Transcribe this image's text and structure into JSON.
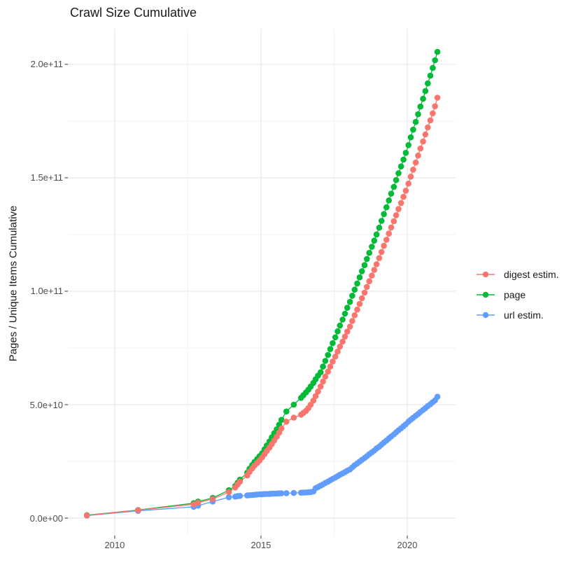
{
  "title": "Crawl Size Cumulative",
  "x_axis": {
    "tick_labels": [
      "2010",
      "2015",
      "2020"
    ],
    "tick_years": [
      2010,
      2015,
      2020
    ],
    "minor_years": [
      2012.5,
      2017.5
    ]
  },
  "y_axis": {
    "label": "Pages / Unique Items Cumulative",
    "tick_labels": [
      "0.0e+00",
      "5.0e+10",
      "1.0e+11",
      "1.5e+11",
      "2.0e+11"
    ],
    "tick_values_billions": [
      0,
      50,
      100,
      150,
      200
    ],
    "minor_values_billions": [
      25,
      75,
      125,
      175
    ]
  },
  "legend": {
    "items": [
      {
        "series": "digest",
        "label": "digest estim.",
        "color": "#F8766D"
      },
      {
        "series": "page",
        "label": "page",
        "color": "#00BA38"
      },
      {
        "series": "url",
        "label": "url estim.",
        "color": "#619CFF"
      }
    ]
  },
  "chart_data": {
    "type": "line",
    "title": "Crawl Size Cumulative",
    "xlabel": "",
    "ylabel": "Pages / Unique Items Cumulative",
    "x_unit": "year (decimal)",
    "y_unit": "cumulative items, billions (value x 1e9)",
    "xlim": [
      2008.4,
      2021.65
    ],
    "ylim_billions": [
      -7.7,
      215.7
    ],
    "grid": "major+minor",
    "legend_position": "right",
    "marker": "point",
    "series_colors": {
      "digest estim.": "#F8766D",
      "page": "#00BA38",
      "url estim.": "#619CFF"
    },
    "draw_order": [
      "page",
      "url",
      "digest"
    ],
    "crawl_columns": [
      "year",
      "page_billions",
      "digest_estim_billions",
      "url_estim_billions"
    ],
    "crawls": [
      [
        2009.05,
        1.3,
        1.2,
        1.1
      ],
      [
        2010.8,
        3.6,
        3.5,
        3.2
      ],
      [
        2012.7,
        6.6,
        6.1,
        5.0
      ],
      [
        2012.85,
        7.3,
        6.8,
        5.5
      ],
      [
        2013.35,
        8.9,
        8.4,
        7.3
      ],
      [
        2013.9,
        12.3,
        11.5,
        9.2
      ],
      [
        2014.12,
        14.2,
        13.5,
        9.5
      ],
      [
        2014.2,
        15.6,
        14.8,
        9.7
      ],
      [
        2014.28,
        17.0,
        16.1,
        9.8
      ],
      [
        2014.53,
        20.0,
        18.8,
        10.0
      ],
      [
        2014.61,
        21.8,
        20.4,
        10.1
      ],
      [
        2014.7,
        23.4,
        21.9,
        10.2
      ],
      [
        2014.78,
        24.8,
        23.2,
        10.3
      ],
      [
        2014.87,
        26.0,
        24.3,
        10.4
      ],
      [
        2014.95,
        27.3,
        25.4,
        10.5
      ],
      [
        2015.04,
        28.6,
        26.8,
        10.55
      ],
      [
        2015.12,
        30.3,
        28.2,
        10.6
      ],
      [
        2015.2,
        32.0,
        29.6,
        10.65
      ],
      [
        2015.29,
        33.8,
        31.1,
        10.7
      ],
      [
        2015.37,
        35.6,
        32.6,
        10.75
      ],
      [
        2015.45,
        37.4,
        34.2,
        10.8
      ],
      [
        2015.54,
        39.2,
        35.9,
        10.85
      ],
      [
        2015.62,
        41.2,
        37.7,
        10.9
      ],
      [
        2015.7,
        43.3,
        39.5,
        10.95
      ],
      [
        2015.87,
        47.0,
        42.5,
        11.0
      ],
      [
        2016.12,
        50.0,
        44.3,
        11.1
      ],
      [
        2016.37,
        53.0,
        45.6,
        11.2
      ],
      [
        2016.45,
        54.2,
        46.4,
        11.25
      ],
      [
        2016.54,
        55.4,
        47.3,
        11.3
      ],
      [
        2016.62,
        56.6,
        48.5,
        11.4
      ],
      [
        2016.7,
        58.0,
        50.0,
        11.5
      ],
      [
        2016.79,
        59.6,
        51.8,
        11.7
      ],
      [
        2016.87,
        61.2,
        53.8,
        13.2
      ],
      [
        2016.95,
        62.8,
        55.8,
        13.7
      ],
      [
        2017.04,
        64.3,
        58.0,
        14.3
      ],
      [
        2017.12,
        66.8,
        60.2,
        14.9
      ],
      [
        2017.2,
        69.3,
        62.4,
        15.5
      ],
      [
        2017.29,
        71.9,
        64.6,
        16.1
      ],
      [
        2017.37,
        74.5,
        66.8,
        16.7
      ],
      [
        2017.45,
        77.1,
        69.0,
        17.3
      ],
      [
        2017.54,
        79.7,
        71.2,
        17.9
      ],
      [
        2017.62,
        82.3,
        73.4,
        18.5
      ],
      [
        2017.7,
        84.9,
        75.6,
        19.1
      ],
      [
        2017.79,
        87.5,
        77.8,
        19.7
      ],
      [
        2017.87,
        90.1,
        80.0,
        20.3
      ],
      [
        2017.95,
        92.7,
        82.2,
        20.9
      ],
      [
        2018.04,
        95.3,
        84.4,
        21.5
      ],
      [
        2018.12,
        98.0,
        86.9,
        22.4
      ],
      [
        2018.2,
        100.7,
        89.4,
        23.3
      ],
      [
        2018.29,
        103.4,
        91.9,
        24.1
      ],
      [
        2018.37,
        106.1,
        94.4,
        24.9
      ],
      [
        2018.45,
        108.8,
        96.9,
        25.7
      ],
      [
        2018.54,
        111.5,
        99.4,
        26.5
      ],
      [
        2018.62,
        114.2,
        101.9,
        27.3
      ],
      [
        2018.7,
        116.9,
        104.4,
        28.2
      ],
      [
        2018.79,
        119.6,
        106.9,
        29.0
      ],
      [
        2018.87,
        122.3,
        109.4,
        29.8
      ],
      [
        2018.95,
        125.0,
        111.9,
        30.7
      ],
      [
        2019.04,
        128.0,
        114.6,
        31.5
      ],
      [
        2019.12,
        131.0,
        117.3,
        32.4
      ],
      [
        2019.2,
        134.0,
        120.0,
        33.3
      ],
      [
        2019.29,
        137.0,
        122.7,
        34.2
      ],
      [
        2019.37,
        140.0,
        125.4,
        35.1
      ],
      [
        2019.45,
        143.0,
        128.1,
        36.0
      ],
      [
        2019.54,
        146.0,
        130.8,
        36.9
      ],
      [
        2019.62,
        149.0,
        133.5,
        37.8
      ],
      [
        2019.7,
        152.0,
        136.2,
        38.7
      ],
      [
        2019.79,
        155.0,
        138.9,
        39.6
      ],
      [
        2019.87,
        158.0,
        141.6,
        40.5
      ],
      [
        2019.95,
        161.0,
        144.3,
        41.4
      ],
      [
        2020.04,
        164.4,
        147.4,
        42.5
      ],
      [
        2020.12,
        167.8,
        150.5,
        43.4
      ],
      [
        2020.2,
        171.2,
        153.6,
        44.2
      ],
      [
        2020.29,
        174.6,
        156.7,
        45.1
      ],
      [
        2020.37,
        178.0,
        159.8,
        45.9
      ],
      [
        2020.45,
        181.4,
        162.9,
        46.8
      ],
      [
        2020.54,
        184.8,
        166.0,
        47.7
      ],
      [
        2020.62,
        188.2,
        169.1,
        48.5
      ],
      [
        2020.7,
        191.6,
        172.2,
        49.4
      ],
      [
        2020.79,
        195.0,
        175.3,
        50.2
      ],
      [
        2020.87,
        198.4,
        178.4,
        51.1
      ],
      [
        2020.95,
        201.8,
        181.5,
        51.9
      ],
      [
        2021.03,
        205.5,
        185.3,
        53.5
      ]
    ]
  }
}
